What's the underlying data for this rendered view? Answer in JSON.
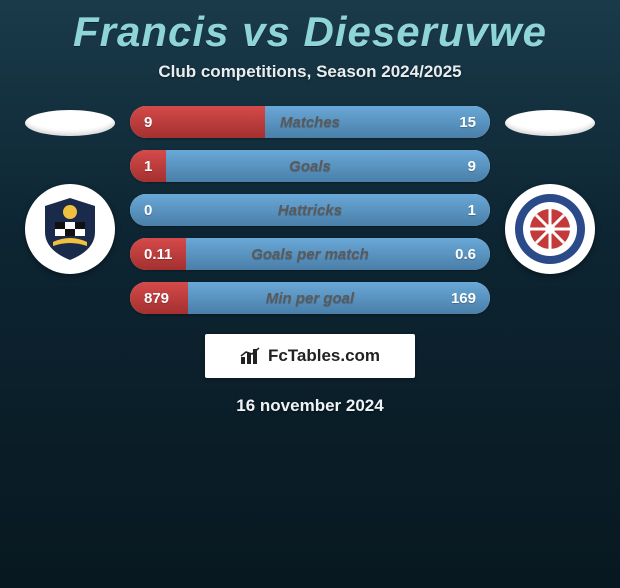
{
  "header": {
    "title": "Francis vs Dieseruvwe",
    "subtitle": "Club competitions, Season 2024/2025",
    "title_color": "#8ed4d8",
    "subtitle_color": "#e8eef0",
    "title_fontsize": 42,
    "subtitle_fontsize": 17
  },
  "colors": {
    "bg_gradient_top": "#1a3a4a",
    "bg_gradient_mid": "#0d2532",
    "bg_gradient_bottom": "#081820",
    "left_fill_top": "#d54a4a",
    "left_fill_bottom": "#a43030",
    "right_fill_top": "#6aa8d8",
    "right_fill_bottom": "#4a7fa8",
    "neutral_top": "#f5f5f0",
    "neutral_bottom": "#d8d5cc",
    "label_color": "#5a5a5a",
    "value_color": "#ffffff"
  },
  "left_player": {
    "flag_bg": "#ffffff",
    "club_name": "Eastleigh FC",
    "badge_primary": "#1a2a4a",
    "badge_secondary": "#f0c040"
  },
  "right_player": {
    "flag_bg": "#ffffff",
    "club_name": "Hartlepool United FC",
    "badge_primary": "#c43a3a",
    "badge_secondary": "#2a4a8a"
  },
  "stats": [
    {
      "label": "Matches",
      "left_val": "9",
      "right_val": "15",
      "left_pct": 37.5,
      "right_pct": 62.5
    },
    {
      "label": "Goals",
      "left_val": "1",
      "right_val": "9",
      "left_pct": 10.0,
      "right_pct": 90.0
    },
    {
      "label": "Hattricks",
      "left_val": "0",
      "right_val": "1",
      "left_pct": 0.0,
      "right_pct": 100.0
    },
    {
      "label": "Goals per match",
      "left_val": "0.11",
      "right_val": "0.6",
      "left_pct": 15.5,
      "right_pct": 84.5
    },
    {
      "label": "Min per goal",
      "left_val": "879",
      "right_val": "169",
      "left_pct": 16.1,
      "right_pct": 83.9
    }
  ],
  "bar_style": {
    "height": 32,
    "radius": 16,
    "gap": 12,
    "label_fontsize": 15
  },
  "brand": {
    "text": "FcTables.com",
    "icon": "chart-icon",
    "bg": "#ffffff",
    "text_color": "#222222"
  },
  "date": "16 november 2024"
}
